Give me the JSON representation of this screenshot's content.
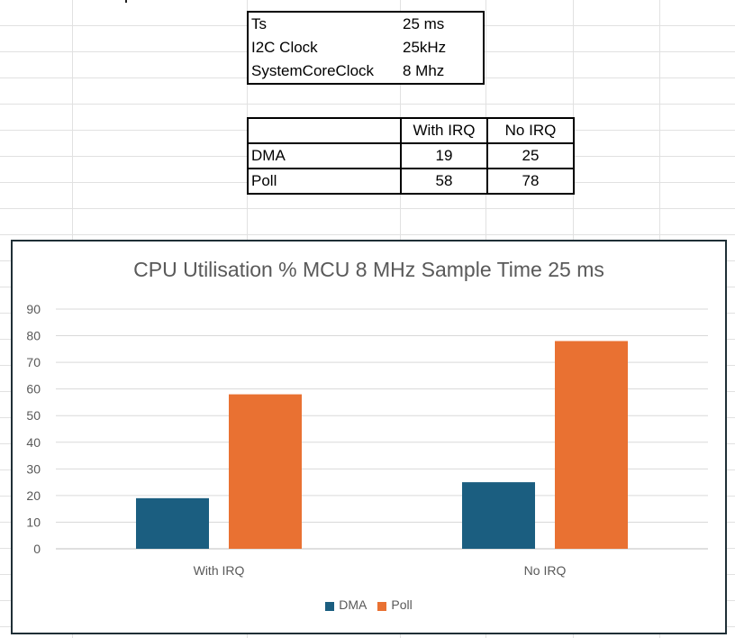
{
  "params": [
    {
      "key": "Ts",
      "value": "25 ms"
    },
    {
      "key": "I2C Clock",
      "value": "25kHz"
    },
    {
      "key": "SystemCoreClock",
      "value": "8 Mhz"
    }
  ],
  "results": {
    "headers": [
      "",
      "With IRQ",
      "No IRQ"
    ],
    "rows": [
      {
        "label": "DMA",
        "with_irq": "19",
        "no_irq": "25"
      },
      {
        "label": "Poll",
        "with_irq": "58",
        "no_irq": "78"
      }
    ]
  },
  "chart_data": {
    "type": "bar",
    "title": "CPU Utilisation % MCU 8 MHz Sample Time 25 ms",
    "categories": [
      "With IRQ",
      "No IRQ"
    ],
    "series": [
      {
        "name": "DMA",
        "values": [
          19,
          25
        ],
        "color": "#1b5e80"
      },
      {
        "name": "Poll",
        "values": [
          58,
          78
        ],
        "color": "#e97132"
      }
    ],
    "ylim": [
      0,
      90
    ],
    "yticks": [
      0,
      10,
      20,
      30,
      40,
      50,
      60,
      70,
      80,
      90
    ],
    "grid": true,
    "legend": "bottom"
  }
}
